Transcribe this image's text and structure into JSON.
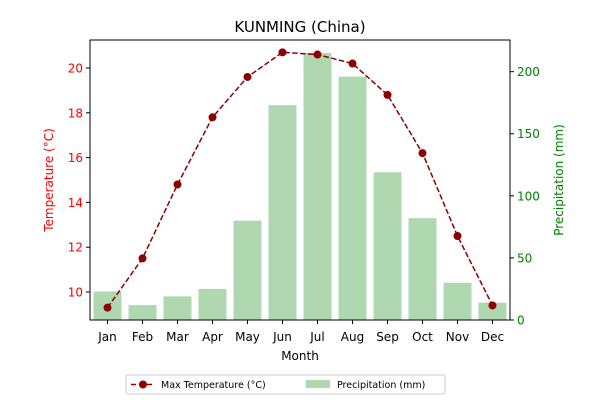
{
  "chart_data": {
    "type": "bar",
    "title": "KUNMING (China)",
    "xlabel": "Month",
    "ylabel_left": "Temperature (°C)",
    "ylabel_right": "Precipitation (mm)",
    "categories": [
      "Jan",
      "Feb",
      "Mar",
      "Apr",
      "May",
      "Jun",
      "Jul",
      "Aug",
      "Sep",
      "Oct",
      "Nov",
      "Dec"
    ],
    "left_axis": {
      "ylim": [
        8.75,
        21.25
      ],
      "ticks": [
        10,
        12,
        14,
        16,
        18,
        20
      ],
      "color": "#ff0000"
    },
    "right_axis": {
      "ylim": [
        0,
        225.5
      ],
      "ticks": [
        0,
        50,
        100,
        150,
        200
      ],
      "color": "#008000"
    },
    "series": [
      {
        "name": "Max Temperature (°C)",
        "type": "line",
        "axis": "left",
        "color": "#8b0000",
        "style": "dashed",
        "marker": "circle",
        "values": [
          9.3,
          11.5,
          14.8,
          17.8,
          19.6,
          20.7,
          20.6,
          20.2,
          18.8,
          16.2,
          12.5,
          9.4
        ]
      },
      {
        "name": "Precipitation (mm)",
        "type": "bar",
        "axis": "right",
        "color": "#b0d8b0",
        "values": [
          23,
          12,
          19,
          25,
          80,
          173,
          215,
          196,
          119,
          82,
          30,
          14
        ]
      }
    ],
    "legend": "bottom-center",
    "grid": false
  }
}
